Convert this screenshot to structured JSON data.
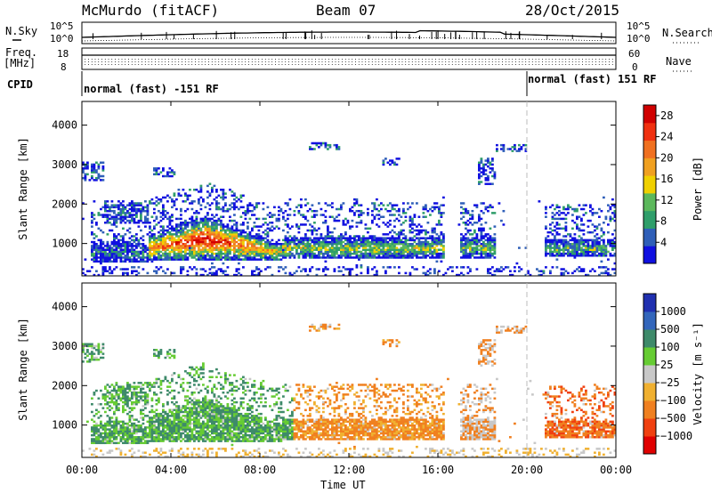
{
  "header": {
    "station": "McMurdo (fitACF)",
    "beam": "Beam 07",
    "date": "28/Oct/2015"
  },
  "top_panels": {
    "nsky_label": "N.Sky",
    "nsearch_label": "N.Search",
    "counts_ticks": [
      "10^5",
      "10^0"
    ],
    "freq_label_line1": "Freq.",
    "freq_label_line2": "[MHz]",
    "freq_ticks": [
      "18",
      "8"
    ],
    "nave_label": "Nave",
    "nave_ticks": [
      "60",
      "0"
    ],
    "cpid_label": "CPID",
    "cpid_segments": [
      {
        "text": "normal (fast) -151 RF",
        "start_hour": 0.0
      },
      {
        "text": "normal (fast) 151 RF",
        "start_hour": 20.0
      }
    ]
  },
  "colors": {
    "power": [
      "#1010e0",
      "#2f5fb8",
      "#2f9e6a",
      "#5cb85c",
      "#f0d000",
      "#f0a020",
      "#f07020",
      "#f03010",
      "#d00000"
    ],
    "velocity": [
      "#e00000",
      "#f04010",
      "#f08020",
      "#f0b030",
      "#c8c8c8",
      "#66cc33",
      "#3e8a6a",
      "#3366bb",
      "#2030b0"
    ]
  },
  "chart_data": [
    {
      "type": "heatmap",
      "panel": "power",
      "ylabel": "Slant Range [km]",
      "ylim": [
        180,
        4600
      ],
      "yticks": [
        1000,
        2000,
        3000,
        4000
      ],
      "xlim": [
        0,
        24
      ],
      "colorbar_label": "Power [dB]",
      "colorbar_ticks": [
        4,
        8,
        12,
        16,
        20,
        24,
        28
      ],
      "colorbar_range": [
        0,
        30
      ],
      "dashed_marker_hour": 20.0
    },
    {
      "type": "heatmap",
      "panel": "velocity",
      "ylabel": "Slant Range [km]",
      "ylim": [
        180,
        4600
      ],
      "yticks": [
        1000,
        2000,
        3000,
        4000
      ],
      "xlim": [
        0,
        24
      ],
      "xlabel": "Time UT",
      "xticks": [
        "00:00",
        "04:00",
        "08:00",
        "12:00",
        "16:00",
        "20:00",
        "00:00"
      ],
      "colorbar_label": "Velocity [m s⁻¹]",
      "colorbar_ticks": [
        "1000",
        "500",
        "100",
        "25",
        "−25",
        "−100",
        "−500",
        "−1000"
      ],
      "dashed_marker_hour": 20.0
    }
  ]
}
